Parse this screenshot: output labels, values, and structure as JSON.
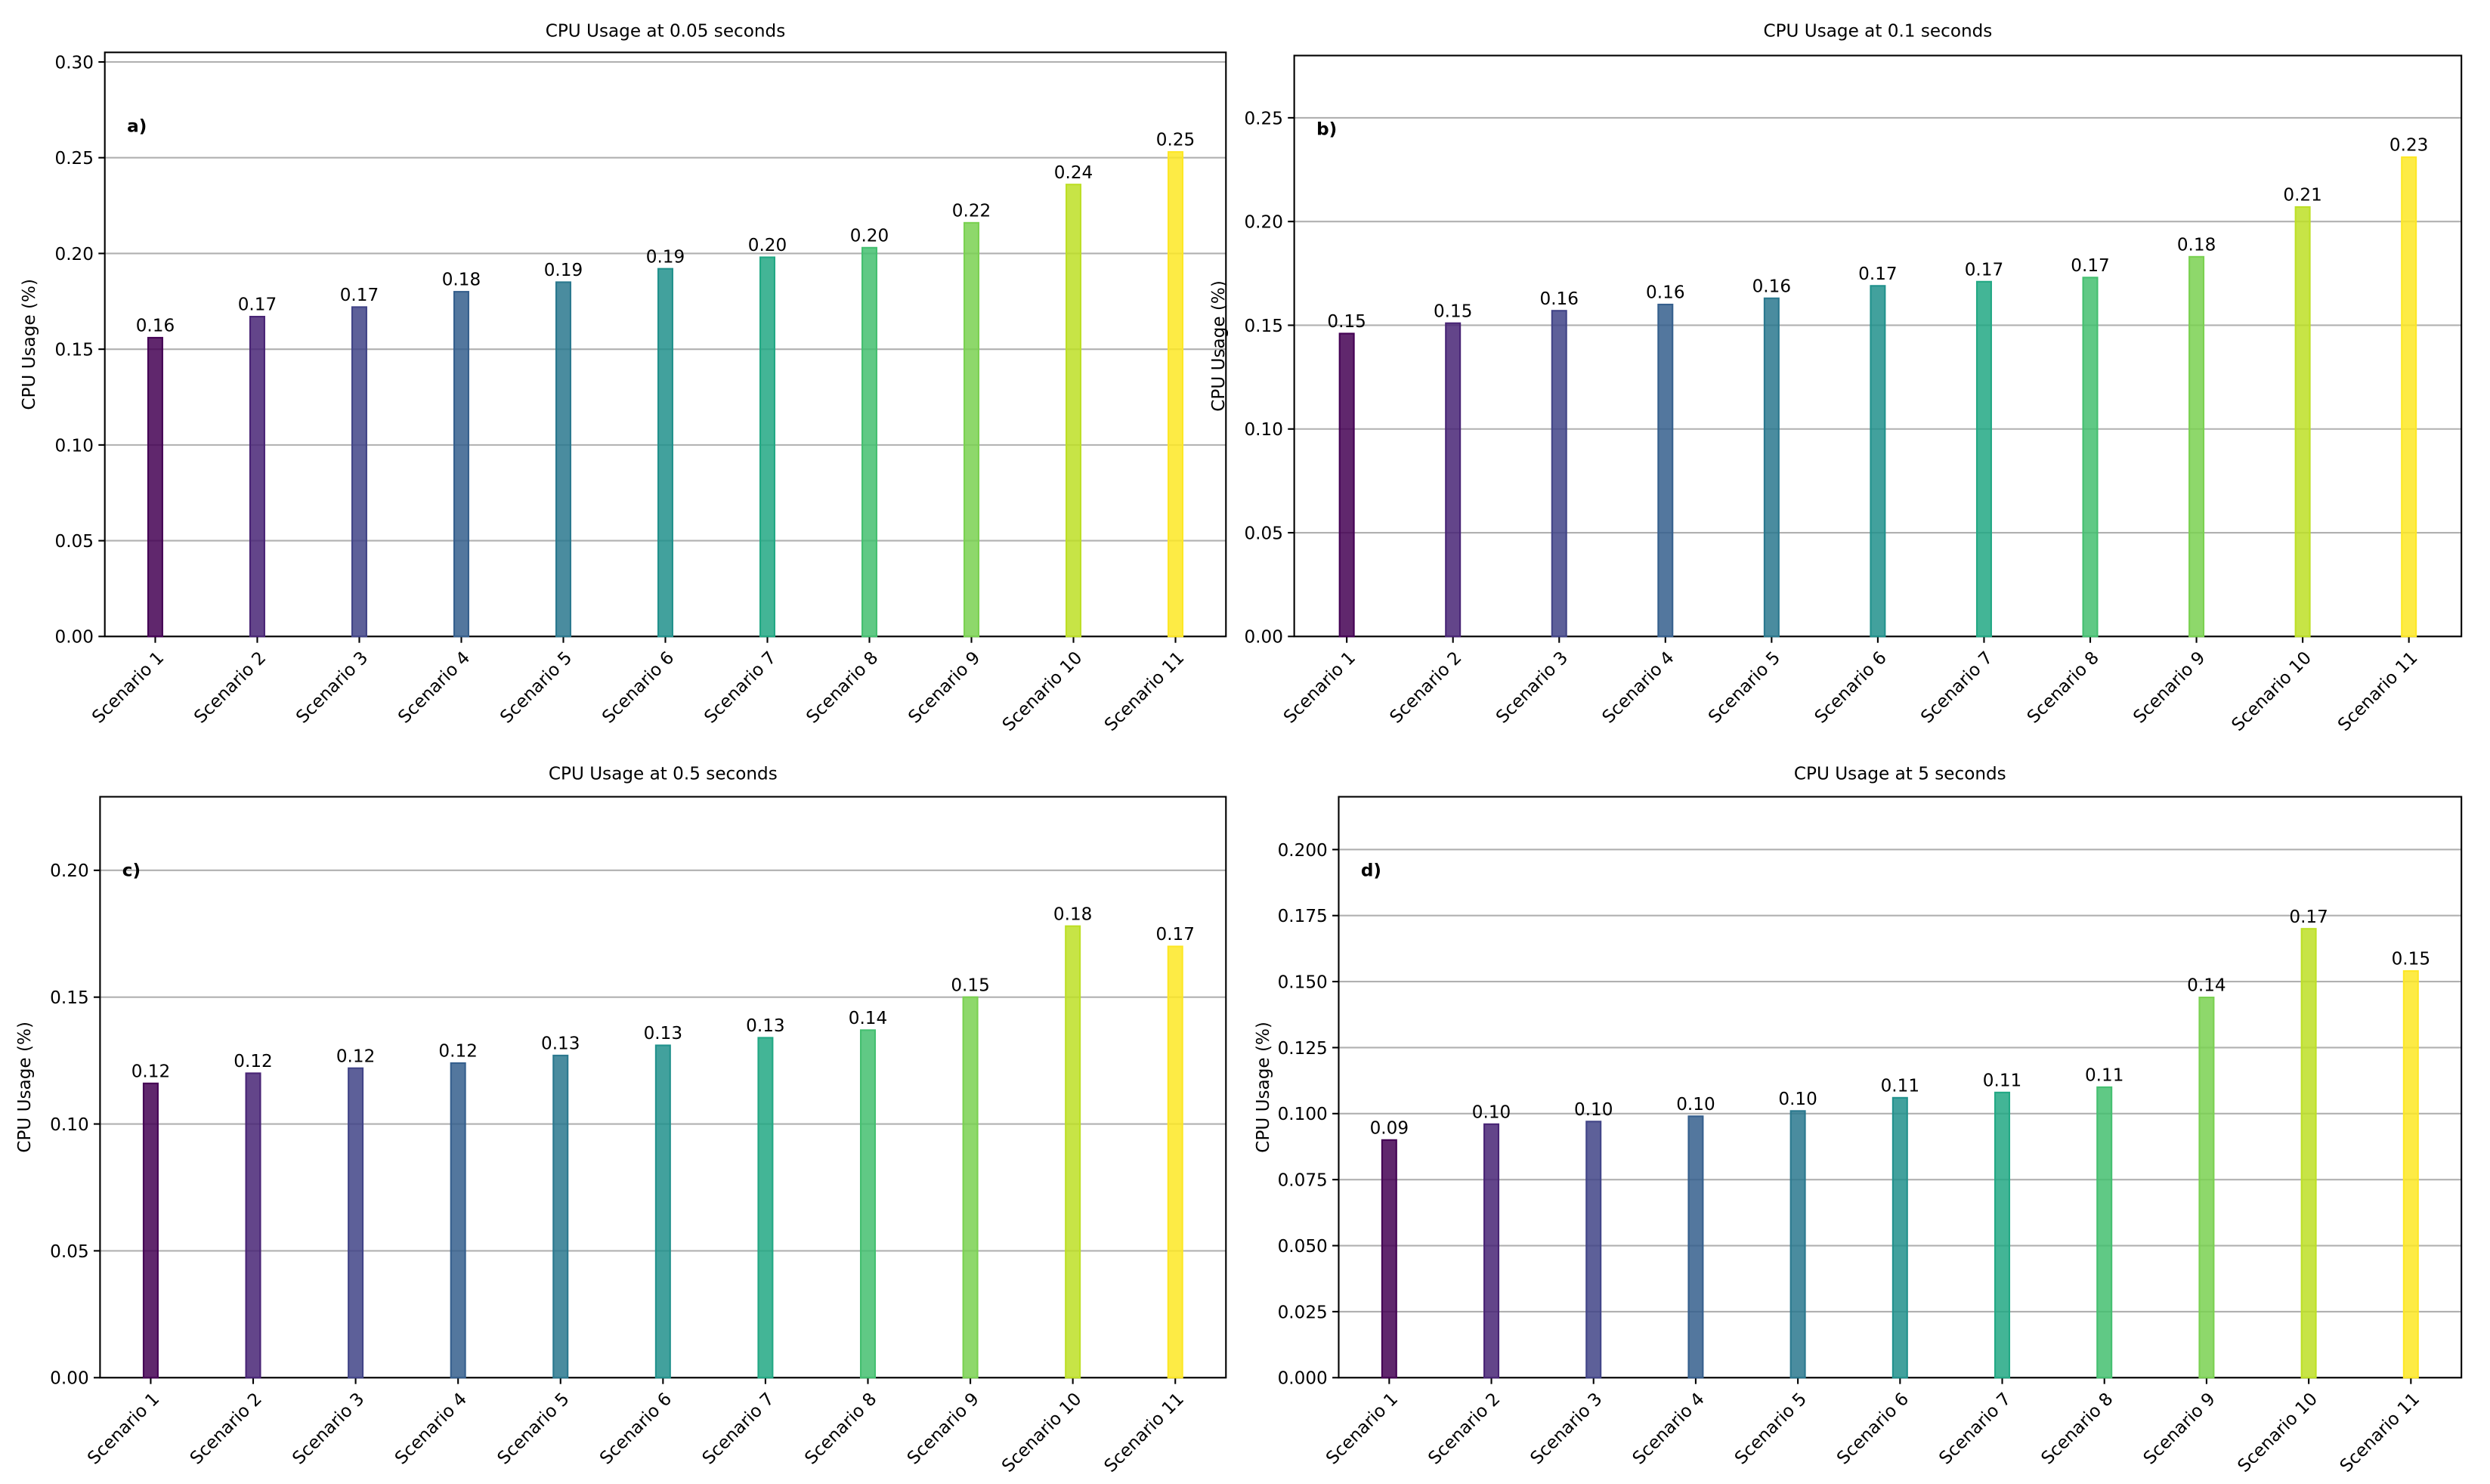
{
  "chart_data": [
    {
      "type": "bar",
      "title": "CPU Usage at 0.05 seconds",
      "panel_label": "a)",
      "y_label": "CPU Usage (%)",
      "categories": [
        "Scenario 1",
        "Scenario 2",
        "Scenario 3",
        "Scenario 4",
        "Scenario 5",
        "Scenario 6",
        "Scenario 7",
        "Scenario 8",
        "Scenario 9",
        "Scenario 10",
        "Scenario 11"
      ],
      "values": [
        0.156,
        0.167,
        0.172,
        0.18,
        0.185,
        0.192,
        0.198,
        0.203,
        0.216,
        0.236,
        0.253
      ],
      "value_labels": [
        "0.16",
        "0.17",
        "0.17",
        "0.18",
        "0.19",
        "0.19",
        "0.20",
        "0.20",
        "0.22",
        "0.24",
        "0.25"
      ],
      "colors": [
        "#440154",
        "#482475",
        "#414487",
        "#355f8d",
        "#2a788e",
        "#21918c",
        "#22a884",
        "#44bf70",
        "#7ad151",
        "#bddf26",
        "#fde725"
      ],
      "ylim": [
        0,
        0.305
      ],
      "yticks": [
        {
          "value": 0,
          "label": "0.00"
        },
        0.05,
        {
          "value": 0.1,
          "label": "0.10"
        },
        0.15,
        {
          "value": 0.2,
          "label": "0.20"
        },
        0.25,
        {
          "value": 0.3,
          "label": "0.30"
        }
      ],
      "grid": true
    },
    {
      "type": "bar",
      "title": "CPU Usage at 0.1 seconds",
      "panel_label": "b)",
      "y_label": "CPU Usage (%)",
      "categories": [
        "Scenario 1",
        "Scenario 2",
        "Scenario 3",
        "Scenario 4",
        "Scenario 5",
        "Scenario 6",
        "Scenario 7",
        "Scenario 8",
        "Scenario 9",
        "Scenario 10",
        "Scenario 11"
      ],
      "values": [
        0.146,
        0.151,
        0.157,
        0.16,
        0.163,
        0.169,
        0.171,
        0.173,
        0.183,
        0.207,
        0.231
      ],
      "value_labels": [
        "0.15",
        "0.15",
        "0.16",
        "0.16",
        "0.16",
        "0.17",
        "0.17",
        "0.17",
        "0.18",
        "0.21",
        "0.23"
      ],
      "colors": [
        "#440154",
        "#482475",
        "#414487",
        "#355f8d",
        "#2a788e",
        "#21918c",
        "#22a884",
        "#44bf70",
        "#7ad151",
        "#bddf26",
        "#fde725"
      ],
      "ylim": [
        0,
        0.28
      ],
      "yticks": [
        {
          "value": 0,
          "label": "0.00"
        },
        0.05,
        {
          "value": 0.1,
          "label": "0.10"
        },
        0.15,
        {
          "value": 0.2,
          "label": "0.20"
        },
        0.25
      ],
      "grid": true
    },
    {
      "type": "bar",
      "title": "CPU Usage at 0.5 seconds",
      "panel_label": "c)",
      "y_label": "CPU Usage (%)",
      "categories": [
        "Scenario 1",
        "Scenario 2",
        "Scenario 3",
        "Scenario 4",
        "Scenario 5",
        "Scenario 6",
        "Scenario 7",
        "Scenario 8",
        "Scenario 9",
        "Scenario 10",
        "Scenario 11"
      ],
      "values": [
        0.116,
        0.12,
        0.122,
        0.124,
        0.127,
        0.131,
        0.134,
        0.137,
        0.15,
        0.178,
        0.17
      ],
      "value_labels": [
        "0.12",
        "0.12",
        "0.12",
        "0.12",
        "0.13",
        "0.13",
        "0.13",
        "0.14",
        "0.15",
        "0.18",
        "0.17"
      ],
      "colors": [
        "#440154",
        "#482475",
        "#414487",
        "#355f8d",
        "#2a788e",
        "#21918c",
        "#22a884",
        "#44bf70",
        "#7ad151",
        "#bddf26",
        "#fde725"
      ],
      "ylim": [
        0,
        0.229
      ],
      "yticks": [
        {
          "value": 0,
          "label": "0.00"
        },
        0.05,
        {
          "value": 0.1,
          "label": "0.10"
        },
        0.15,
        {
          "value": 0.2,
          "label": "0.20"
        }
      ],
      "grid": true
    },
    {
      "type": "bar",
      "title": "CPU Usage at 5 seconds",
      "panel_label": "d)",
      "y_label": "CPU Usage (%)",
      "categories": [
        "Scenario 1",
        "Scenario 2",
        "Scenario 3",
        "Scenario 4",
        "Scenario 5",
        "Scenario 6",
        "Scenario 7",
        "Scenario 8",
        "Scenario 9",
        "Scenario 10",
        "Scenario 11"
      ],
      "values": [
        0.09,
        0.096,
        0.097,
        0.099,
        0.101,
        0.106,
        0.108,
        0.11,
        0.144,
        0.17,
        0.154
      ],
      "value_labels": [
        "0.09",
        "0.10",
        "0.10",
        "0.10",
        "0.10",
        "0.11",
        "0.11",
        "0.11",
        "0.14",
        "0.17",
        "0.15"
      ],
      "colors": [
        "#440154",
        "#482475",
        "#414487",
        "#355f8d",
        "#2a788e",
        "#21918c",
        "#22a884",
        "#44bf70",
        "#7ad151",
        "#bddf26",
        "#fde725"
      ],
      "ylim": [
        0,
        0.22
      ],
      "yticks": [
        {
          "value": 0,
          "label": "0.000"
        },
        0.025,
        {
          "value": 0.05,
          "label": "0.050"
        },
        0.075,
        {
          "value": 0.1,
          "label": "0.100"
        },
        0.125,
        {
          "value": 0.15,
          "label": "0.150"
        },
        0.175,
        {
          "value": 0.2,
          "label": "0.200"
        }
      ],
      "grid": true
    }
  ]
}
